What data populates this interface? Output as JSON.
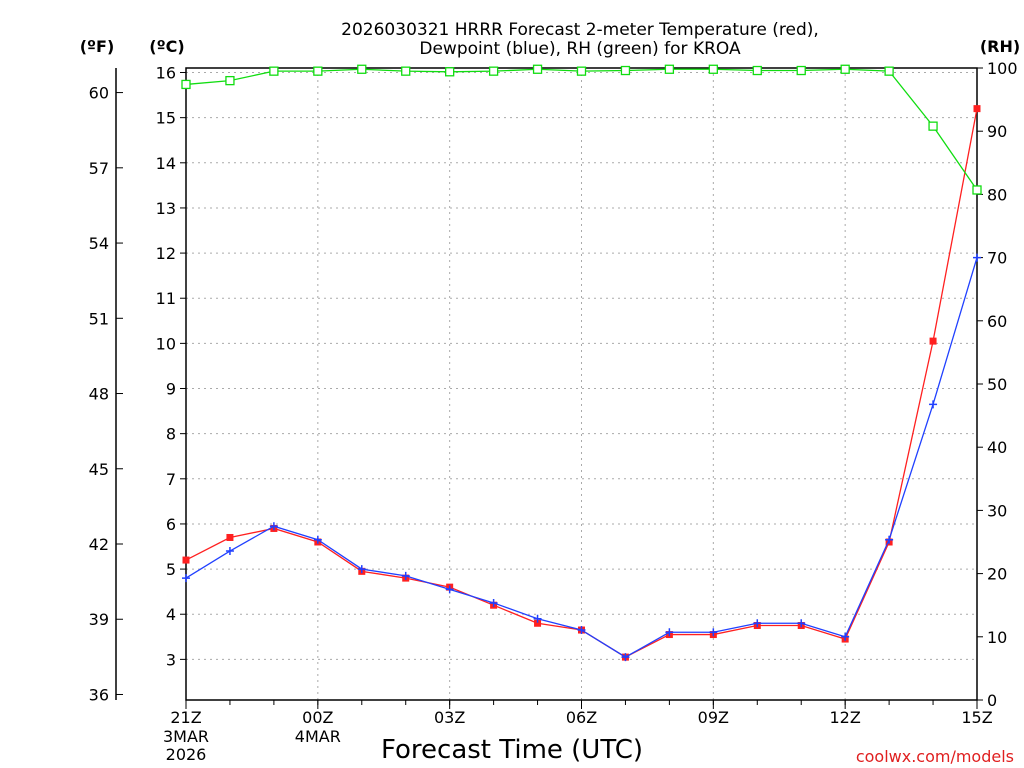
{
  "chart_data": {
    "type": "line",
    "title_line1": "2026030321 HRRR Forecast 2-meter Temperature (red),",
    "title_line2": "Dewpoint (blue), RH (green) for KROA",
    "unit_f": "(ºF)",
    "unit_c": "(ºC)",
    "unit_rh": "(RH)",
    "xlabel": "Forecast Time (UTC)",
    "watermark": "coolwx.com/models",
    "x_hours": [
      0,
      1,
      2,
      3,
      4,
      5,
      6,
      7,
      8,
      9,
      10,
      11,
      12,
      13,
      14,
      15,
      16,
      17,
      18
    ],
    "x_ticks": [
      {
        "hour": 0,
        "label": "21Z",
        "sub1": "3MAR",
        "sub2": "2026"
      },
      {
        "hour": 3,
        "label": "00Z",
        "sub1": "4MAR",
        "sub2": ""
      },
      {
        "hour": 6,
        "label": "03Z",
        "sub1": "",
        "sub2": ""
      },
      {
        "hour": 9,
        "label": "06Z",
        "sub1": "",
        "sub2": ""
      },
      {
        "hour": 12,
        "label": "09Z",
        "sub1": "",
        "sub2": ""
      },
      {
        "hour": 15,
        "label": "12Z",
        "sub1": "",
        "sub2": ""
      },
      {
        "hour": 18,
        "label": "15Z",
        "sub1": "",
        "sub2": ""
      }
    ],
    "ylim_c": [
      2.1,
      16.1
    ],
    "c_ticks": [
      3,
      4,
      5,
      6,
      7,
      8,
      9,
      10,
      11,
      12,
      13,
      14,
      15,
      16
    ],
    "f_ticks": [
      36,
      39,
      42,
      45,
      48,
      51,
      54,
      57,
      60
    ],
    "rh_ylim": [
      0,
      100
    ],
    "rh_ticks": [
      0,
      10,
      20,
      30,
      40,
      50,
      60,
      70,
      80,
      90,
      100
    ],
    "series": [
      {
        "name": "Temperature",
        "color": "#ff2020",
        "marker": "square",
        "values": [
          5.2,
          5.7,
          5.9,
          5.6,
          4.95,
          4.8,
          4.6,
          4.2,
          3.8,
          3.65,
          3.05,
          3.55,
          3.55,
          3.75,
          3.75,
          3.45,
          5.6,
          10.05,
          15.2
        ]
      },
      {
        "name": "Dewpoint",
        "color": "#2040ff",
        "marker": "plus",
        "values": [
          4.8,
          5.4,
          5.95,
          5.65,
          5.0,
          4.85,
          4.55,
          4.25,
          3.9,
          3.65,
          3.05,
          3.6,
          3.6,
          3.8,
          3.8,
          3.5,
          5.65,
          8.65,
          11.9
        ]
      },
      {
        "name": "RH",
        "color": "#10dd10",
        "marker": "open-square",
        "axis": "rh",
        "values": [
          97.4,
          98.0,
          99.5,
          99.5,
          99.8,
          99.5,
          99.4,
          99.5,
          99.8,
          99.5,
          99.6,
          99.8,
          99.8,
          99.6,
          99.6,
          99.8,
          99.5,
          90.8,
          80.7
        ]
      }
    ]
  }
}
